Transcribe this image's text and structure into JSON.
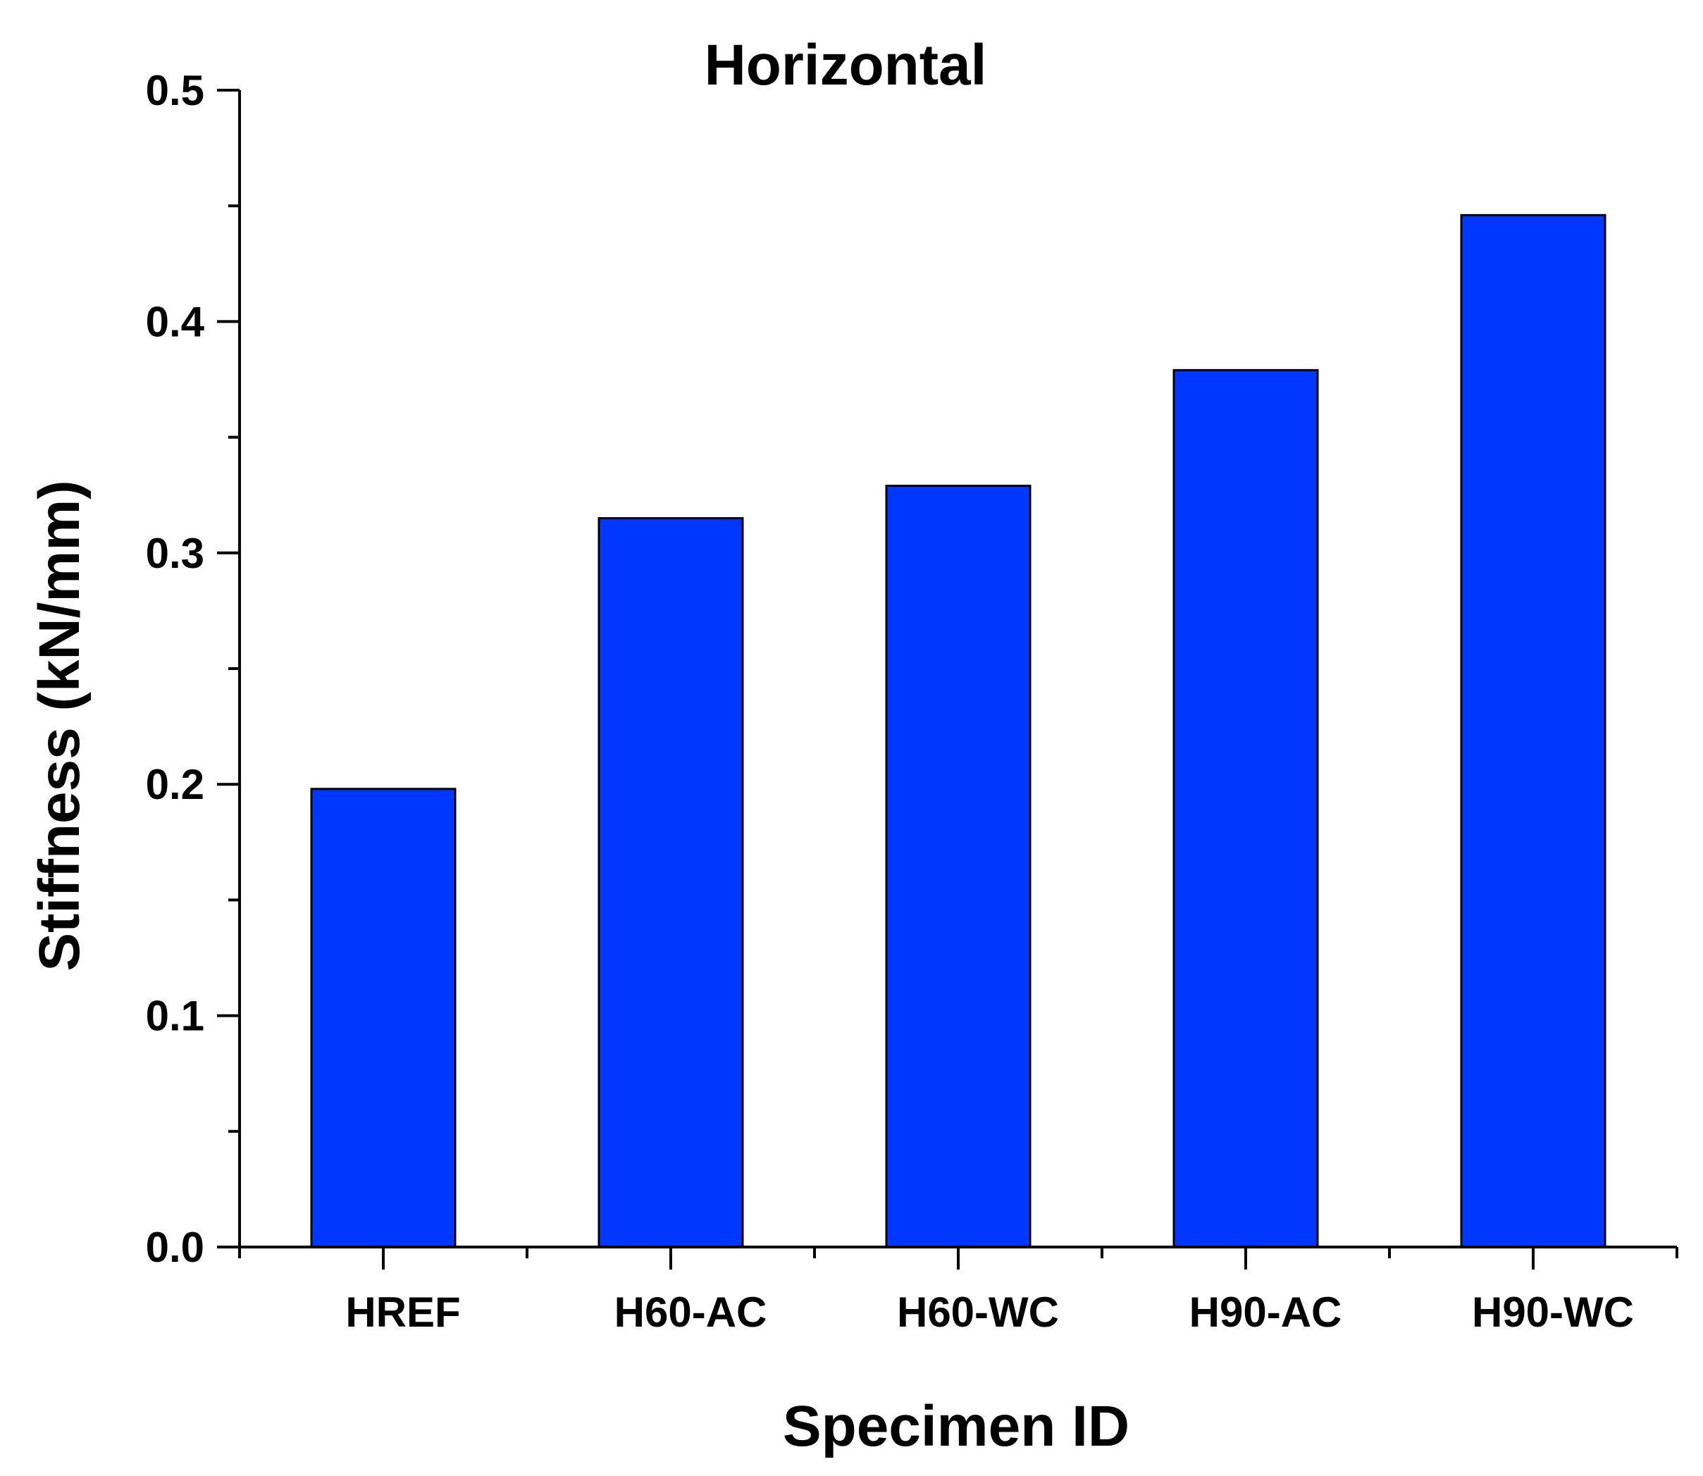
{
  "chart_data": {
    "type": "bar",
    "title": "Horizontal",
    "xlabel": "Specimen ID",
    "ylabel": "Stiffness (kN/mm)",
    "categories": [
      "HREF",
      "H60-AC",
      "H60-WC",
      "H90-AC",
      "H90-WC"
    ],
    "values": [
      0.198,
      0.315,
      0.329,
      0.379,
      0.446
    ],
    "ylim": [
      0,
      0.5
    ],
    "yticks": [
      "0.0",
      "0.1",
      "0.2",
      "0.3",
      "0.4",
      "0.5"
    ],
    "grid": false,
    "legend": "none",
    "bar_color": "#0037FF"
  }
}
